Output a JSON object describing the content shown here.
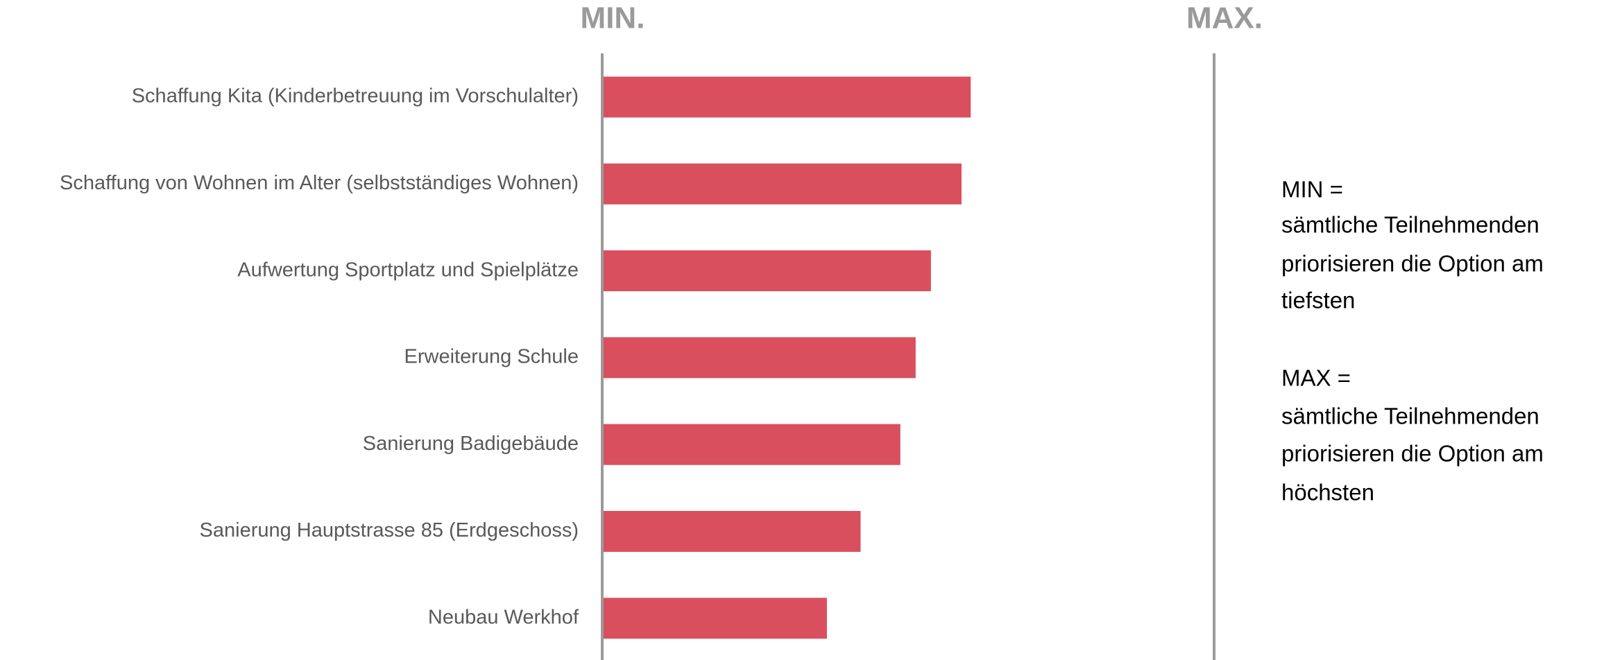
{
  "chart_data": {
    "type": "bar",
    "orientation": "horizontal",
    "categories": [
      "Schaffung Kita (Kinderbetreuung im Vorschulalter)",
      "Schaffung von Wohnen im Alter (selbstständiges Wohnen)",
      "Aufwertung Sportplatz und Spielplätze",
      "Erweiterung Schule",
      "Sanierung Badigebäude",
      "Sanierung Hauptstrasse 85 (Erdgeschoss)",
      "Neubau Werkhof"
    ],
    "values": [
      60,
      58.5,
      53.5,
      51,
      48.5,
      42,
      36.5
    ],
    "color": "#d94f5e",
    "xlim": [
      0,
      100
    ],
    "xticks": [
      {
        "value": 0,
        "label": "MIN."
      },
      {
        "value": 100,
        "label": "MAX."
      }
    ],
    "annotations": [
      [
        "MIN =",
        "sämtliche Teilnehmenden",
        "priorisieren die Option am",
        "tiefsten"
      ],
      [
        "MAX =",
        "sämtliche Teilnehmenden",
        "priorisieren die Option am",
        "höchsten"
      ]
    ]
  }
}
